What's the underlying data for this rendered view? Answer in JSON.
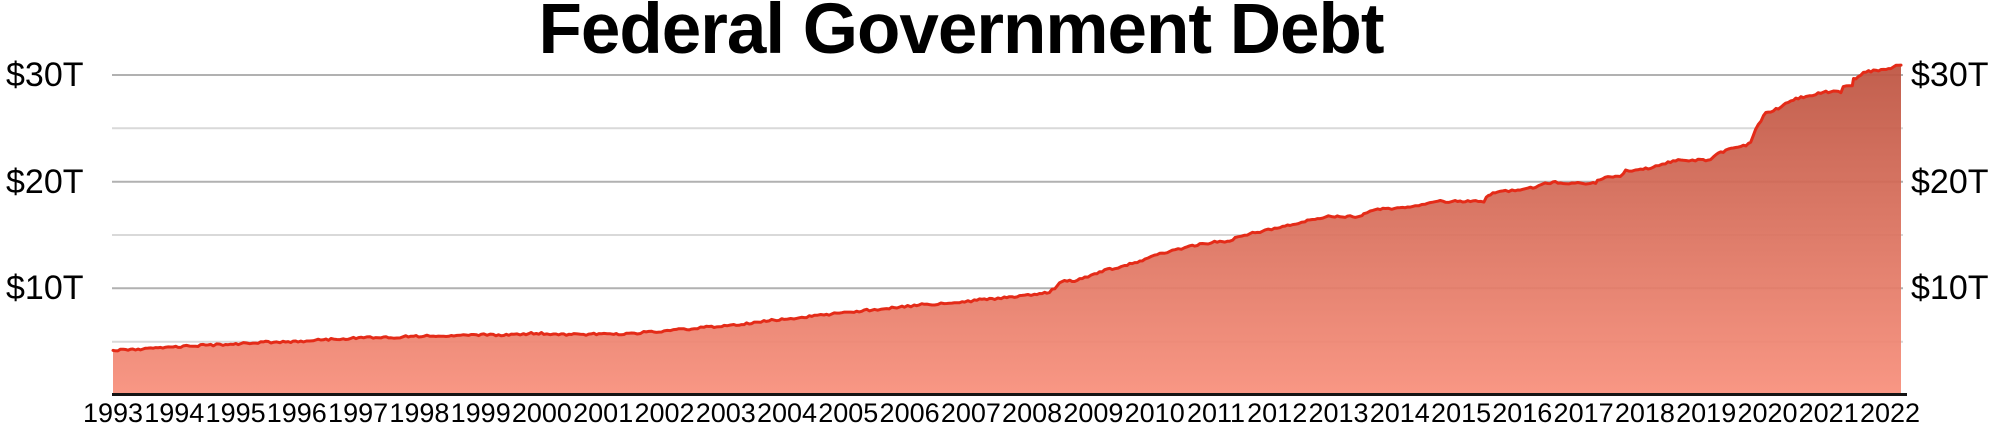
{
  "title": "Federal Government Debt",
  "colors": {
    "background": "#ffffff",
    "text": "#000000",
    "line": "#e42b18",
    "fill_top": "#bd5340",
    "fill_bottom": "#f88f7b",
    "gridline_major": "#b1b1b1",
    "gridline_minor": "#d9d9d9",
    "axis": "#141414"
  },
  "chart_data": {
    "type": "area",
    "title": "Federal Government Debt",
    "xlabel": "",
    "ylabel": "",
    "x_range": [
      1993.0,
      2022.75
    ],
    "y_range": [
      0,
      31
    ],
    "grid": "horizontal",
    "legend": null,
    "y_labels_both_sides": true,
    "x_tick_labels": [
      "1993",
      "1994",
      "1995",
      "1996",
      "1997",
      "1998",
      "1999",
      "2000",
      "2001",
      "2002",
      "2003",
      "2004",
      "2005",
      "2006",
      "2007",
      "2008",
      "2009",
      "2010",
      "2011",
      "2012",
      "2013",
      "2014",
      "2015",
      "2016",
      "2017",
      "2018",
      "2019",
      "2020",
      "2021",
      "2022"
    ],
    "y_ticks": [
      {
        "value": 10,
        "label": "$10T"
      },
      {
        "value": 20,
        "label": "$20T"
      },
      {
        "value": 30,
        "label": "$30T"
      }
    ],
    "y_minor_gridlines": [
      5,
      15,
      25
    ],
    "series": [
      {
        "name": "total-federal-debt",
        "unit": "trillions-of-dollars",
        "points": [
          [
            1993.0,
            4.18
          ],
          [
            1993.08,
            4.2
          ],
          [
            1993.17,
            4.21
          ],
          [
            1993.25,
            4.23
          ],
          [
            1993.33,
            4.27
          ],
          [
            1993.42,
            4.31
          ],
          [
            1993.5,
            4.33
          ],
          [
            1993.58,
            4.34
          ],
          [
            1993.67,
            4.37
          ],
          [
            1993.75,
            4.41
          ],
          [
            1993.83,
            4.45
          ],
          [
            1993.92,
            4.5
          ],
          [
            1994.0,
            4.54
          ],
          [
            1994.17,
            4.56
          ],
          [
            1994.33,
            4.6
          ],
          [
            1994.5,
            4.65
          ],
          [
            1994.67,
            4.69
          ],
          [
            1994.83,
            4.73
          ],
          [
            1995.0,
            4.8
          ],
          [
            1995.17,
            4.83
          ],
          [
            1995.33,
            4.89
          ],
          [
            1995.5,
            4.95
          ],
          [
            1995.67,
            4.96
          ],
          [
            1995.83,
            4.98
          ],
          [
            1996.0,
            4.99
          ],
          [
            1996.08,
            4.99
          ],
          [
            1996.17,
            5.0
          ],
          [
            1996.22,
            5.02
          ],
          [
            1996.27,
            5.12
          ],
          [
            1996.33,
            5.13
          ],
          [
            1996.5,
            5.16
          ],
          [
            1996.67,
            5.22
          ],
          [
            1996.83,
            5.28
          ],
          [
            1997.0,
            5.32
          ],
          [
            1997.17,
            5.36
          ],
          [
            1997.33,
            5.38
          ],
          [
            1997.5,
            5.38
          ],
          [
            1997.67,
            5.41
          ],
          [
            1997.83,
            5.46
          ],
          [
            1998.0,
            5.5
          ],
          [
            1998.17,
            5.54
          ],
          [
            1998.33,
            5.51
          ],
          [
            1998.5,
            5.53
          ],
          [
            1998.67,
            5.56
          ],
          [
            1998.83,
            5.59
          ],
          [
            1999.0,
            5.61
          ],
          [
            1999.17,
            5.65
          ],
          [
            1999.33,
            5.6
          ],
          [
            1999.5,
            5.64
          ],
          [
            1999.67,
            5.66
          ],
          [
            1999.83,
            5.72
          ],
          [
            2000.0,
            5.78
          ],
          [
            2000.17,
            5.76
          ],
          [
            2000.33,
            5.69
          ],
          [
            2000.5,
            5.69
          ],
          [
            2000.67,
            5.67
          ],
          [
            2000.83,
            5.66
          ],
          [
            2001.0,
            5.7
          ],
          [
            2001.17,
            5.75
          ],
          [
            2001.33,
            5.66
          ],
          [
            2001.5,
            5.72
          ],
          [
            2001.67,
            5.77
          ],
          [
            2001.83,
            5.89
          ],
          [
            2002.0,
            5.94
          ],
          [
            2002.17,
            6.01
          ],
          [
            2002.33,
            6.09
          ],
          [
            2002.5,
            6.16
          ],
          [
            2002.67,
            6.22
          ],
          [
            2002.83,
            6.34
          ],
          [
            2003.0,
            6.41
          ],
          [
            2003.17,
            6.46
          ],
          [
            2003.33,
            6.56
          ],
          [
            2003.5,
            6.67
          ],
          [
            2003.67,
            6.79
          ],
          [
            2003.83,
            6.93
          ],
          [
            2004.0,
            7.01
          ],
          [
            2004.17,
            7.12
          ],
          [
            2004.33,
            7.21
          ],
          [
            2004.5,
            7.33
          ],
          [
            2004.67,
            7.38
          ],
          [
            2004.83,
            7.52
          ],
          [
            2005.0,
            7.62
          ],
          [
            2005.17,
            7.71
          ],
          [
            2005.33,
            7.78
          ],
          [
            2005.5,
            7.93
          ],
          [
            2005.67,
            7.96
          ],
          [
            2005.83,
            8.09
          ],
          [
            2006.0,
            8.17
          ],
          [
            2006.17,
            8.27
          ],
          [
            2006.33,
            8.36
          ],
          [
            2006.5,
            8.51
          ],
          [
            2006.67,
            8.51
          ],
          [
            2006.83,
            8.63
          ],
          [
            2007.0,
            8.68
          ],
          [
            2007.17,
            8.78
          ],
          [
            2007.33,
            8.84
          ],
          [
            2007.5,
            8.99
          ],
          [
            2007.67,
            9.01
          ],
          [
            2007.83,
            9.16
          ],
          [
            2008.0,
            9.23
          ],
          [
            2008.17,
            9.37
          ],
          [
            2008.33,
            9.39
          ],
          [
            2008.5,
            9.58
          ],
          [
            2008.58,
            9.65
          ],
          [
            2008.67,
            10.02
          ],
          [
            2008.75,
            10.57
          ],
          [
            2008.83,
            10.66
          ],
          [
            2008.92,
            10.7
          ],
          [
            2009.0,
            10.63
          ],
          [
            2009.17,
            11.04
          ],
          [
            2009.33,
            11.32
          ],
          [
            2009.5,
            11.67
          ],
          [
            2009.67,
            11.91
          ],
          [
            2009.83,
            12.14
          ],
          [
            2010.0,
            12.4
          ],
          [
            2010.17,
            12.68
          ],
          [
            2010.33,
            13.05
          ],
          [
            2010.5,
            13.36
          ],
          [
            2010.67,
            13.56
          ],
          [
            2010.83,
            13.79
          ],
          [
            2011.0,
            14.03
          ],
          [
            2011.17,
            14.19
          ],
          [
            2011.33,
            14.34
          ],
          [
            2011.5,
            14.34
          ],
          [
            2011.58,
            14.34
          ],
          [
            2011.63,
            14.58
          ],
          [
            2011.67,
            14.72
          ],
          [
            2011.83,
            14.94
          ],
          [
            2011.92,
            15.11
          ],
          [
            2012.0,
            15.22
          ],
          [
            2012.17,
            15.41
          ],
          [
            2012.33,
            15.62
          ],
          [
            2012.5,
            15.86
          ],
          [
            2012.67,
            16.02
          ],
          [
            2012.83,
            16.3
          ],
          [
            2013.0,
            16.43
          ],
          [
            2013.17,
            16.69
          ],
          [
            2013.33,
            16.74
          ],
          [
            2013.5,
            16.74
          ],
          [
            2013.67,
            16.74
          ],
          [
            2013.78,
            16.75
          ],
          [
            2013.81,
            17.08
          ],
          [
            2013.92,
            17.23
          ],
          [
            2014.0,
            17.35
          ],
          [
            2014.17,
            17.47
          ],
          [
            2014.33,
            17.51
          ],
          [
            2014.5,
            17.63
          ],
          [
            2014.67,
            17.75
          ],
          [
            2014.83,
            17.94
          ],
          [
            2015.0,
            18.14
          ],
          [
            2015.17,
            18.15
          ],
          [
            2015.33,
            18.15
          ],
          [
            2015.5,
            18.15
          ],
          [
            2015.67,
            18.15
          ],
          [
            2015.81,
            18.15
          ],
          [
            2015.85,
            18.61
          ],
          [
            2015.92,
            18.83
          ],
          [
            2016.0,
            18.92
          ],
          [
            2016.17,
            19.13
          ],
          [
            2016.33,
            19.19
          ],
          [
            2016.5,
            19.38
          ],
          [
            2016.67,
            19.51
          ],
          [
            2016.83,
            19.81
          ],
          [
            2017.0,
            19.95
          ],
          [
            2017.17,
            19.85
          ],
          [
            2017.33,
            19.84
          ],
          [
            2017.5,
            19.84
          ],
          [
            2017.67,
            19.84
          ],
          [
            2017.7,
            20.16
          ],
          [
            2017.83,
            20.44
          ],
          [
            2017.92,
            20.49
          ],
          [
            2018.0,
            20.49
          ],
          [
            2018.08,
            20.49
          ],
          [
            2018.13,
            20.8
          ],
          [
            2018.17,
            21.03
          ],
          [
            2018.33,
            21.09
          ],
          [
            2018.5,
            21.21
          ],
          [
            2018.67,
            21.46
          ],
          [
            2018.83,
            21.7
          ],
          [
            2019.0,
            21.97
          ],
          [
            2019.17,
            22.03
          ],
          [
            2019.33,
            22.02
          ],
          [
            2019.5,
            22.02
          ],
          [
            2019.58,
            22.02
          ],
          [
            2019.63,
            22.39
          ],
          [
            2019.75,
            22.72
          ],
          [
            2019.92,
            23.1
          ],
          [
            2020.0,
            23.22
          ],
          [
            2020.17,
            23.44
          ],
          [
            2020.25,
            23.69
          ],
          [
            2020.33,
            24.97
          ],
          [
            2020.42,
            25.75
          ],
          [
            2020.5,
            26.48
          ],
          [
            2020.58,
            26.52
          ],
          [
            2020.67,
            26.8
          ],
          [
            2020.75,
            27.0
          ],
          [
            2020.83,
            27.3
          ],
          [
            2020.92,
            27.55
          ],
          [
            2021.0,
            27.75
          ],
          [
            2021.17,
            28.0
          ],
          [
            2021.33,
            28.19
          ],
          [
            2021.5,
            28.43
          ],
          [
            2021.58,
            28.43
          ],
          [
            2021.67,
            28.43
          ],
          [
            2021.75,
            28.43
          ],
          [
            2021.79,
            28.91
          ],
          [
            2021.88,
            28.91
          ],
          [
            2021.94,
            28.91
          ],
          [
            2021.96,
            29.62
          ],
          [
            2022.0,
            29.62
          ],
          [
            2022.08,
            30.01
          ],
          [
            2022.17,
            30.29
          ],
          [
            2022.25,
            30.37
          ],
          [
            2022.33,
            30.4
          ],
          [
            2022.42,
            30.45
          ],
          [
            2022.5,
            30.53
          ],
          [
            2022.58,
            30.62
          ],
          [
            2022.67,
            30.85
          ],
          [
            2022.75,
            30.93
          ]
        ]
      }
    ]
  }
}
